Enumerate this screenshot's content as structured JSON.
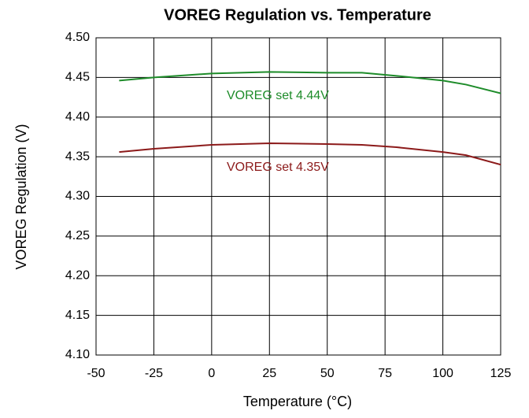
{
  "chart_data": {
    "type": "line",
    "title": "VOREG Regulation vs. Temperature",
    "x_label": "Temperature (°C)",
    "y_label": "VOREG Regulation (V)",
    "x": [
      -40,
      -25,
      0,
      25,
      50,
      65,
      80,
      100,
      110,
      125
    ],
    "series": [
      {
        "name": "VOREG set 4.44V",
        "color": "#1e8c2a",
        "values": [
          4.446,
          4.45,
          4.455,
          4.457,
          4.456,
          4.456,
          4.452,
          4.446,
          4.441,
          4.43
        ]
      },
      {
        "name": "VOREG set 4.35V",
        "color": "#8c1a1a",
        "values": [
          4.356,
          4.36,
          4.365,
          4.367,
          4.366,
          4.365,
          4.362,
          4.356,
          4.352,
          4.34
        ]
      }
    ],
    "xlim": [
      -50,
      125
    ],
    "xticks": [
      -50,
      -25,
      0,
      25,
      50,
      75,
      100,
      125
    ],
    "ylim": [
      4.1,
      4.5
    ],
    "yticks": [
      {
        "value": 4.1,
        "label": "4.10"
      },
      4.15,
      {
        "value": 4.2,
        "label": "4.20"
      },
      4.25,
      {
        "value": 4.3,
        "label": "4.30"
      },
      4.35,
      {
        "value": 4.4,
        "label": "4.40"
      },
      4.45,
      {
        "value": 4.5,
        "label": "4.50"
      }
    ],
    "grid": true
  }
}
